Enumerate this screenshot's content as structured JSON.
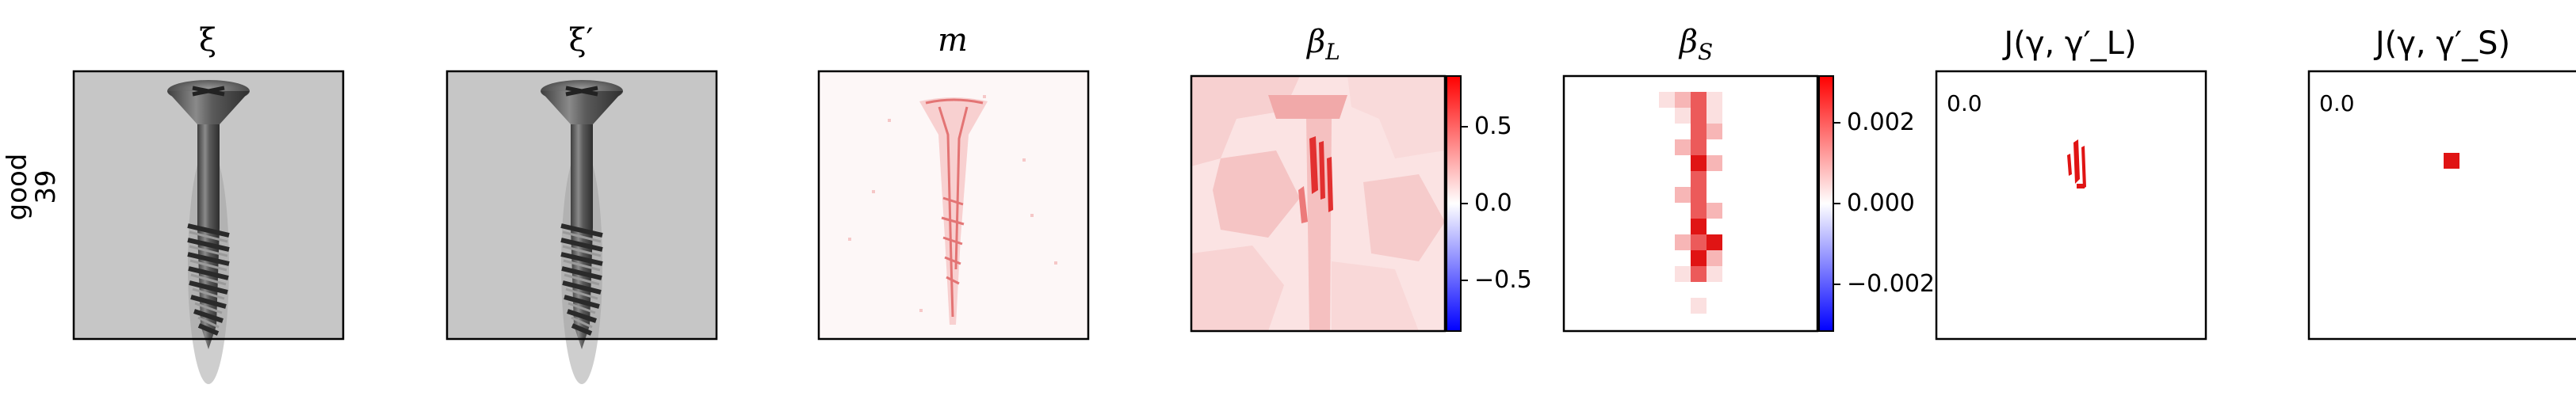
{
  "row_label": {
    "line1": "good",
    "line2": "39"
  },
  "titles": {
    "xi": "ξ",
    "xi_prime": "ξ′",
    "m": "m",
    "beta_L_main": "β",
    "beta_L_sub": "L",
    "beta_S_main": "β",
    "beta_S_sub": "S",
    "J_L": "J(γ, γ′_L)",
    "J_S": "J(γ, γ′_S)"
  },
  "colorbar_L": {
    "ticks": [
      "0.5",
      "0.0",
      "−0.5"
    ]
  },
  "colorbar_S": {
    "ticks": [
      "0.002",
      "0.000",
      "−0.002"
    ]
  },
  "J_L_value": "0.0",
  "J_S_value": "0.0",
  "colors": {
    "positive": "#ff0000",
    "negative": "#0000ff",
    "neutral": "#ffffff"
  }
}
